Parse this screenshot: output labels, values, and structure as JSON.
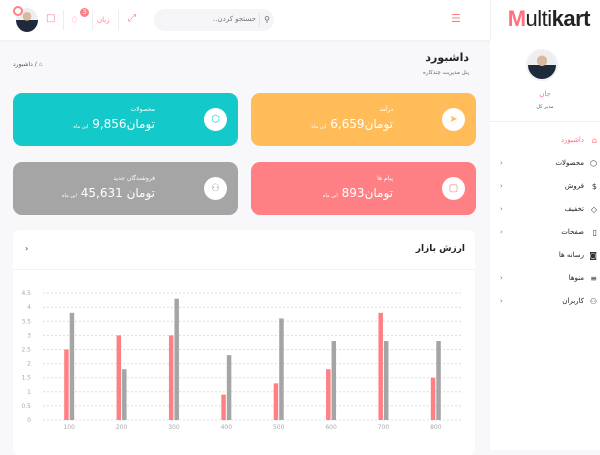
{
  "brand": {
    "logo_m": "M",
    "logo_rest": "ulti",
    "logo_bold": "kart"
  },
  "header": {
    "search_placeholder": "جستجو کردن..",
    "language": "زبان",
    "notification_count": "3",
    "icons": [
      "menu-icon",
      "search-icon",
      "expand-icon",
      "bell-icon",
      "chat-icon"
    ]
  },
  "sidebar": {
    "user_name": "جان",
    "user_role": "مدیر کل",
    "items": [
      {
        "label": "داشبورد",
        "icon": "home-icon",
        "active": true,
        "has_children": false
      },
      {
        "label": "محصولات",
        "icon": "box-icon",
        "has_children": true
      },
      {
        "label": "فروش",
        "icon": "dollar-icon",
        "has_children": true
      },
      {
        "label": "تخفیف",
        "icon": "tag-icon",
        "has_children": true
      },
      {
        "label": "صفحات",
        "icon": "clipboard-icon",
        "has_children": true
      },
      {
        "label": "رسانه ها",
        "icon": "camera-icon",
        "has_children": false
      },
      {
        "label": "منوها",
        "icon": "list-icon",
        "has_children": true
      },
      {
        "label": "کاربران",
        "icon": "users-icon",
        "has_children": true
      }
    ]
  },
  "page": {
    "title": "داشبورد",
    "subtitle": "پنل مدیریت چندکاره",
    "breadcrumb": "داشبورد"
  },
  "cards": [
    {
      "label": "درآمد",
      "value": "تومان6,659",
      "period": "این ماه",
      "color": "#ffbc58",
      "icon": "navigation-icon"
    },
    {
      "label": "محصولات",
      "value": "تومان9,856",
      "period": "این ماه",
      "color": "#13c9ca",
      "icon": "box-icon"
    },
    {
      "label": "پیام ها",
      "value": "تومان893",
      "period": "این ماه",
      "color": "#ff8084",
      "icon": "message-icon"
    },
    {
      "label": "فروشندگان جدید",
      "value": "تومان 45,631",
      "period": "این ماه",
      "color": "#a5a5a5",
      "icon": "users-icon"
    }
  ],
  "chart_data": {
    "type": "bar",
    "title": "ارزش بازار",
    "categories": [
      "100",
      "200",
      "300",
      "400",
      "500",
      "600",
      "700",
      "800"
    ],
    "series": [
      {
        "color": "#ff8084",
        "values": [
          2.5,
          3,
          3,
          0.9,
          1.3,
          1.8,
          3.8,
          1.5
        ]
      },
      {
        "color": "#a5a5a5",
        "values": [
          3.8,
          1.8,
          4.3,
          2.3,
          3.6,
          2.8,
          2.8,
          2.8
        ]
      }
    ],
    "ylim": [
      0,
      4.5
    ],
    "yticks": [
      "0",
      "0.5",
      "1",
      "1.5",
      "2",
      "2.5",
      "3",
      "3.5",
      "4",
      "4.5"
    ],
    "grid": true
  }
}
